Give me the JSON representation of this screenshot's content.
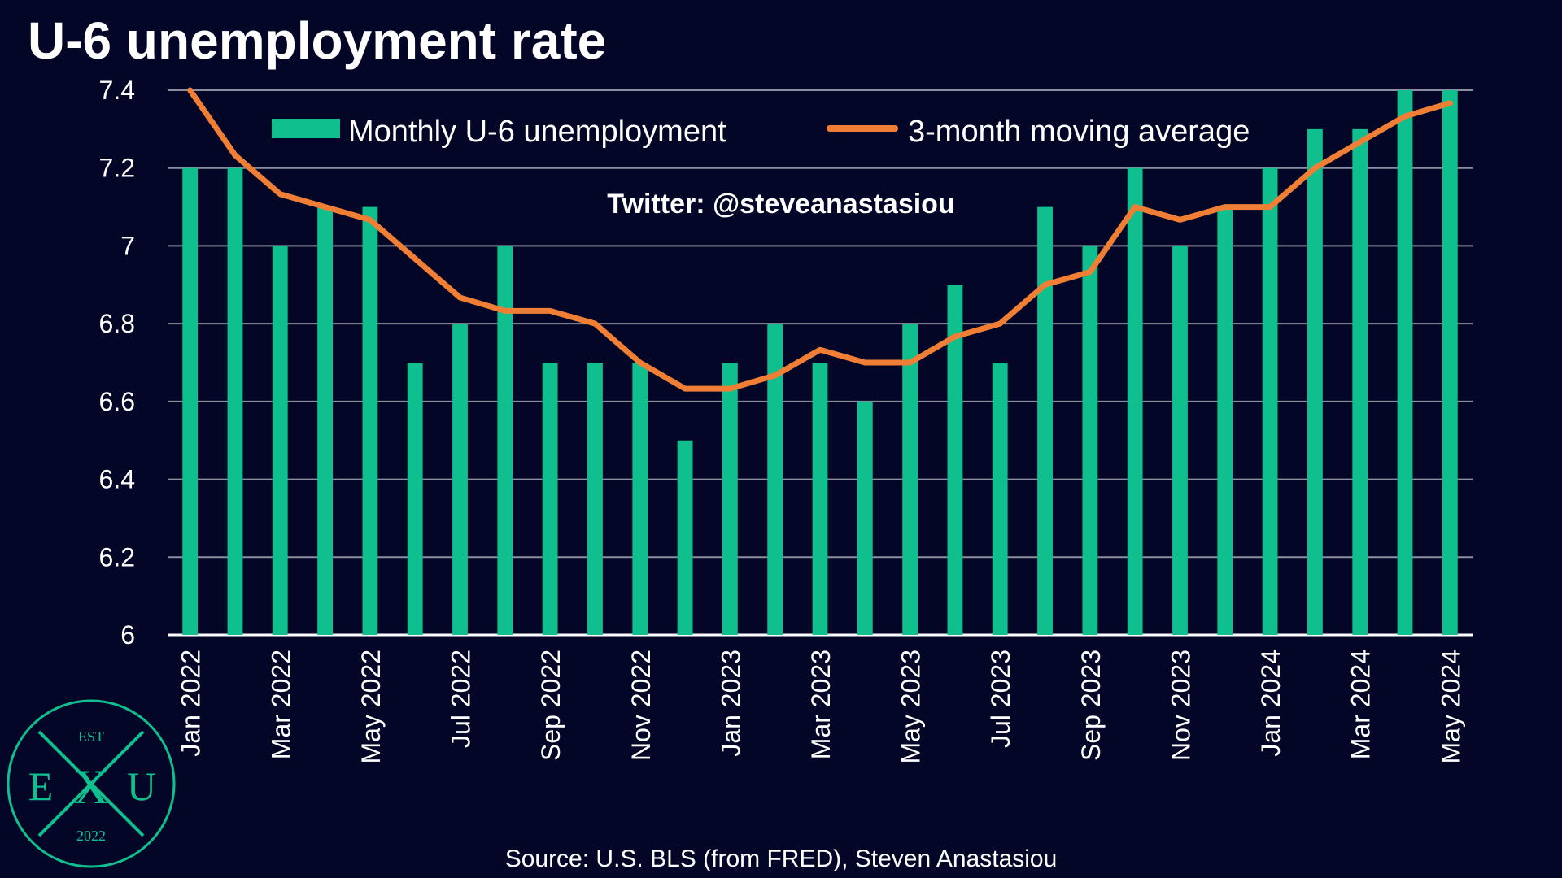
{
  "chart_data": {
    "type": "bar",
    "title": "U-6 unemployment rate",
    "categories": [
      "Jan 2022",
      "Feb 2022",
      "Mar 2022",
      "Apr 2022",
      "May 2022",
      "Jun 2022",
      "Jul 2022",
      "Aug 2022",
      "Sep 2022",
      "Oct 2022",
      "Nov 2022",
      "Dec 2022",
      "Jan 2023",
      "Feb 2023",
      "Mar 2023",
      "Apr 2023",
      "May 2023",
      "Jun 2023",
      "Jul 2023",
      "Aug 2023",
      "Sep 2023",
      "Oct 2023",
      "Nov 2023",
      "Dec 2023",
      "Jan 2024",
      "Feb 2024",
      "Mar 2024",
      "Apr 2024",
      "May 2024"
    ],
    "tick_labels": [
      "Jan 2022",
      "",
      "Mar 2022",
      "",
      "May 2022",
      "",
      "Jul 2022",
      "",
      "Sep 2022",
      "",
      "Nov 2022",
      "",
      "Jan 2023",
      "",
      "Mar 2023",
      "",
      "May 2023",
      "",
      "Jul 2023",
      "",
      "Sep 2023",
      "",
      "Nov 2023",
      "",
      "Jan 2024",
      "",
      "Mar 2024",
      "",
      "May 2024"
    ],
    "series": [
      {
        "name": "Monthly U-6 unemployment",
        "kind": "bar",
        "color": "#0fbf8e",
        "values": [
          7.2,
          7.2,
          7.0,
          7.1,
          7.1,
          6.7,
          6.8,
          7.0,
          6.7,
          6.7,
          6.7,
          6.5,
          6.7,
          6.8,
          6.7,
          6.6,
          6.8,
          6.9,
          6.7,
          7.1,
          7.0,
          7.2,
          7.0,
          7.1,
          7.2,
          7.3,
          7.3,
          7.4,
          7.4
        ]
      },
      {
        "name": "3-month moving average",
        "kind": "line",
        "color": "#f07f35",
        "values": [
          7.4,
          7.233,
          7.133,
          7.1,
          7.067,
          6.967,
          6.867,
          6.833,
          6.833,
          6.8,
          6.7,
          6.633,
          6.633,
          6.667,
          6.733,
          6.7,
          6.7,
          6.767,
          6.8,
          6.9,
          6.933,
          7.1,
          7.067,
          7.1,
          7.1,
          7.2,
          7.267,
          7.333,
          7.367
        ]
      }
    ],
    "ylim": [
      6,
      7.4
    ],
    "yticks": [
      6,
      6.2,
      6.4,
      6.6,
      6.8,
      7,
      7.2,
      7.4
    ],
    "ytick_labels": [
      "6",
      "6.2",
      "6.4",
      "6.6",
      "6.8",
      "7",
      "7.2",
      "7.4"
    ],
    "grid": true,
    "legend": "top"
  },
  "watermark": "Twitter: @steveanastasiou",
  "source": "Source: U.S. BLS (from FRED), Steven Anastasiou",
  "logo": {
    "top": "EST",
    "left": "E",
    "middle": "X",
    "right": "U",
    "bottom": "2022"
  }
}
